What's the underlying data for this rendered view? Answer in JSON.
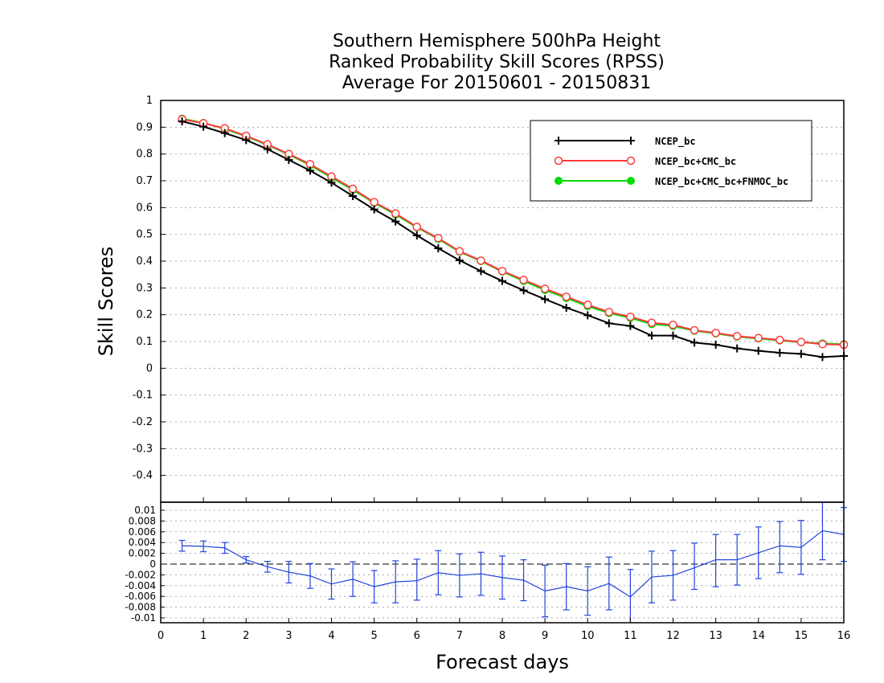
{
  "chart_data": [
    {
      "type": "line",
      "title": [
        "Southern Hemisphere 500hPa Height",
        "Ranked Probability Skill Scores (RPSS)",
        "Average For 20150601 - 20150831"
      ],
      "xlabel": "",
      "ylabel": "Skill Scores",
      "xlim": [
        0,
        16
      ],
      "ylim": [
        -0.5,
        1
      ],
      "y_ticks": [
        "1",
        "0.9",
        "0.8",
        "0.7",
        "0.6",
        "0.5",
        "0.4",
        "0.3",
        "0.2",
        "0.1",
        "0",
        "-0.1",
        "-0.2",
        "-0.3",
        "-0.4"
      ],
      "grid": true,
      "legend_position": "top-right",
      "x": [
        0.5,
        1,
        1.5,
        2,
        2.5,
        3,
        3.5,
        4,
        4.5,
        5,
        5.5,
        6,
        6.5,
        7,
        7.5,
        8,
        8.5,
        9,
        9.5,
        10,
        10.5,
        11,
        11.5,
        12,
        12.5,
        13,
        13.5,
        14,
        14.5,
        15,
        15.5,
        16
      ],
      "series": [
        {
          "name": "NCEP_bc",
          "color": "#000000",
          "marker": "plus",
          "values": [
            0.922,
            0.902,
            0.878,
            0.852,
            0.818,
            0.778,
            0.738,
            0.693,
            0.643,
            0.593,
            0.548,
            0.496,
            0.448,
            0.403,
            0.363,
            0.326,
            0.291,
            0.258,
            0.226,
            0.198,
            0.168,
            0.158,
            0.122,
            0.122,
            0.096,
            0.088,
            0.074,
            0.065,
            0.058,
            0.054,
            0.042,
            0.046
          ]
        },
        {
          "name": "NCEP_bc+CMC_bc",
          "color": "#ff3b3b",
          "marker": "open-circle",
          "values": [
            0.93,
            0.915,
            0.896,
            0.868,
            0.836,
            0.8,
            0.762,
            0.716,
            0.67,
            0.62,
            0.578,
            0.528,
            0.486,
            0.437,
            0.402,
            0.363,
            0.33,
            0.297,
            0.267,
            0.237,
            0.21,
            0.192,
            0.17,
            0.162,
            0.142,
            0.132,
            0.12,
            0.113,
            0.106,
            0.098,
            0.09,
            0.088
          ]
        },
        {
          "name": "NCEP_bc+CMC_bc+FNMOC_bc",
          "color": "#00dd00",
          "marker": "filled-circle",
          "values": [
            0.932,
            0.916,
            0.894,
            0.866,
            0.834,
            0.798,
            0.758,
            0.712,
            0.666,
            0.618,
            0.574,
            0.526,
            0.483,
            0.435,
            0.4,
            0.361,
            0.326,
            0.292,
            0.262,
            0.232,
            0.206,
            0.188,
            0.165,
            0.158,
            0.14,
            0.13,
            0.118,
            0.111,
            0.104,
            0.097,
            0.093,
            0.09
          ]
        }
      ]
    },
    {
      "type": "line",
      "xlabel": "Forecast days",
      "xlim": [
        0,
        16
      ],
      "ylim": [
        -0.011,
        0.011
      ],
      "x_ticks": [
        "0",
        "1",
        "2",
        "3",
        "4",
        "5",
        "6",
        "7",
        "8",
        "9",
        "10",
        "11",
        "12",
        "13",
        "14",
        "15",
        "16"
      ],
      "y_ticks": [
        "0.01",
        "0.008",
        "0.006",
        "0.004",
        "0.002",
        "0",
        "-0.002",
        "-0.004",
        "-0.006",
        "-0.008",
        "-0.01"
      ],
      "grid": true,
      "x": [
        0.5,
        1,
        1.5,
        2,
        2.5,
        3,
        3.5,
        4,
        4.5,
        5,
        5.5,
        6,
        6.5,
        7,
        7.5,
        8,
        8.5,
        9,
        9.5,
        10,
        10.5,
        11,
        11.5,
        12,
        12.5,
        13,
        13.5,
        14,
        14.5,
        15,
        15.5,
        16
      ],
      "series": [
        {
          "color": "#2244dd",
          "marker": "error-bars",
          "values": [
            0.0034,
            0.0033,
            0.003,
            0.0008,
            -0.0005,
            -0.0015,
            -0.0022,
            -0.0037,
            -0.0028,
            -0.0042,
            -0.0033,
            -0.0031,
            -0.0016,
            -0.0021,
            -0.0018,
            -0.0025,
            -0.003,
            -0.005,
            -0.0042,
            -0.005,
            -0.0036,
            -0.0061,
            -0.0024,
            -0.0021,
            -0.0007,
            0.0008,
            0.0008,
            0.0021,
            0.0034,
            0.0031,
            0.0062,
            0.0055
          ],
          "error_low": [
            0.0024,
            0.0023,
            0.002,
            0.0002,
            -0.0015,
            -0.0035,
            -0.0045,
            -0.0065,
            -0.006,
            -0.0072,
            -0.0072,
            -0.0067,
            -0.0057,
            -0.0061,
            -0.0058,
            -0.0065,
            -0.0068,
            -0.0098,
            -0.0085,
            -0.0095,
            -0.0085,
            -0.0112,
            -0.0072,
            -0.0067,
            -0.0047,
            -0.0042,
            -0.0039,
            -0.0027,
            -0.0016,
            -0.0019,
            0.0008,
            0.0005
          ],
          "error_high": [
            0.0044,
            0.0043,
            0.004,
            0.0014,
            0.0005,
            0.0005,
            0.0001,
            -0.0009,
            0.0004,
            -0.0012,
            0.0006,
            0.0009,
            0.0025,
            0.0019,
            0.0022,
            0.0015,
            0.0008,
            -0.0002,
            0.0001,
            -0.0005,
            0.0013,
            -0.001,
            0.0024,
            0.0025,
            0.0039,
            0.0055,
            0.0055,
            0.0069,
            0.0079,
            0.0081,
            0.0116,
            0.0105
          ]
        }
      ]
    }
  ]
}
